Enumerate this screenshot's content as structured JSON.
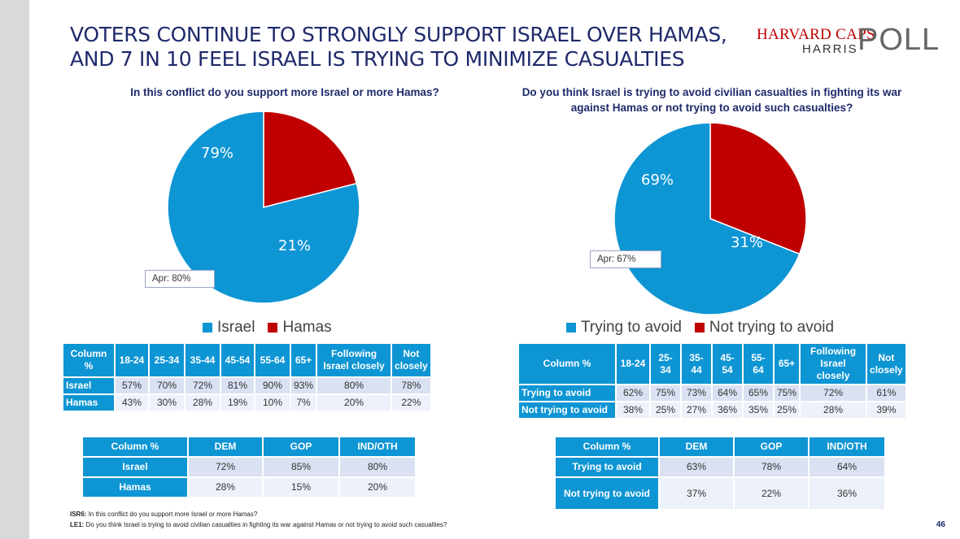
{
  "title": {
    "line1": "VOTERS CONTINUE TO STRONGLY SUPPORT ISRAEL OVER HAMAS,",
    "line2": "AND 7 IN 10 FEEL ISRAEL IS TRYING TO MINIMIZE CASUALTIES"
  },
  "logo": {
    "top": "HARVARD CAPS",
    "middle": "HARRIS",
    "poll": "POLL"
  },
  "colors": {
    "blue": "#0e95d4",
    "red": "#c00000",
    "navy": "#1f2a6b"
  },
  "chart_data": [
    {
      "type": "pie",
      "title": "In this conflict do you support more Israel or more Hamas?",
      "slices": [
        {
          "name": "Israel",
          "value": 79,
          "label": "79%",
          "color": "#0e95d4"
        },
        {
          "name": "Hamas",
          "value": 21,
          "label": "21%",
          "color": "#c00000"
        }
      ],
      "annotation": "Apr: 80%",
      "legend_position": "bottom"
    },
    {
      "type": "pie",
      "title": "Do you think Israel is trying to avoid civilian casualties in fighting its war against Hamas or not trying to avoid such casualties?",
      "slices": [
        {
          "name": "Trying to avoid",
          "value": 69,
          "label": "69%",
          "color": "#0e95d4"
        },
        {
          "name": "Not trying to avoid",
          "value": 31,
          "label": "31%",
          "color": "#c00000"
        }
      ],
      "annotation": "Apr: 67%",
      "legend_position": "bottom"
    }
  ],
  "tables": {
    "age1": {
      "headers": [
        "Column %",
        "18-24",
        "25-34",
        "35-44",
        "45-54",
        "55-64",
        "65+",
        "Following Israel closely",
        "Not closely"
      ],
      "rows": [
        {
          "label": "Israel",
          "values": [
            "57%",
            "70%",
            "72%",
            "81%",
            "90%",
            "93%",
            "80%",
            "78%"
          ]
        },
        {
          "label": "Hamas",
          "values": [
            "43%",
            "30%",
            "28%",
            "19%",
            "10%",
            "7%",
            "20%",
            "22%"
          ]
        }
      ]
    },
    "age2": {
      "headers": [
        "Column %",
        "18-24",
        "25-34",
        "35-44",
        "45-54",
        "55-64",
        "65+",
        "Following Israel closely",
        "Not closely"
      ],
      "rows": [
        {
          "label": "Trying to avoid",
          "values": [
            "62%",
            "75%",
            "73%",
            "64%",
            "65%",
            "75%",
            "72%",
            "61%"
          ]
        },
        {
          "label": "Not trying to avoid",
          "values": [
            "38%",
            "25%",
            "27%",
            "36%",
            "35%",
            "25%",
            "28%",
            "39%"
          ]
        }
      ]
    },
    "party1": {
      "headers": [
        "Column %",
        "DEM",
        "GOP",
        "IND/OTH"
      ],
      "rows": [
        {
          "label": "Israel",
          "values": [
            "72%",
            "85%",
            "80%"
          ]
        },
        {
          "label": "Hamas",
          "values": [
            "28%",
            "15%",
            "20%"
          ]
        }
      ]
    },
    "party2": {
      "headers": [
        "Column %",
        "DEM",
        "GOP",
        "IND/OTH"
      ],
      "rows": [
        {
          "label": "Trying to avoid",
          "values": [
            "63%",
            "78%",
            "64%"
          ]
        },
        {
          "label": "Not trying to avoid",
          "values": [
            "37%",
            "22%",
            "36%"
          ]
        }
      ]
    }
  },
  "footnotes": [
    {
      "code": "ISR6:",
      "text": "In this conflict do you support more Israel or more Hamas?"
    },
    {
      "code": "LE1:",
      "text": "Do you think Israel is trying to avoid civilian casualties in fighting its war against Hamas or not trying to avoid such casualties?"
    }
  ],
  "page_number": "46"
}
